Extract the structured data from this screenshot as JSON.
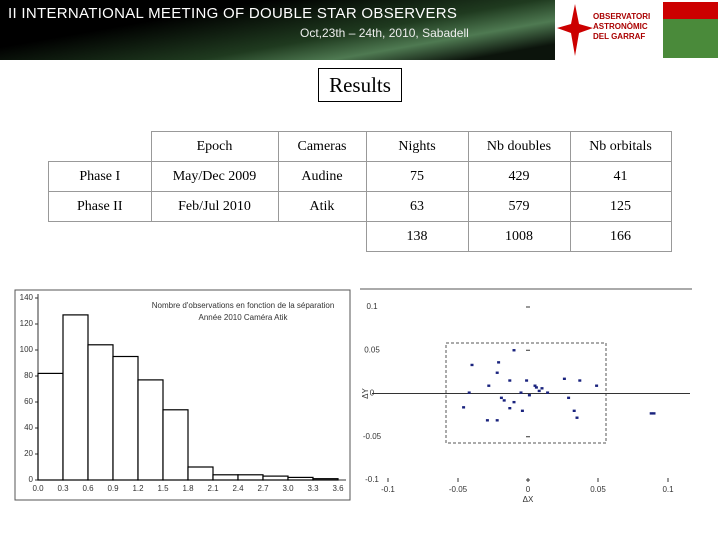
{
  "header": {
    "title": "II INTERNATIONAL MEETING OF DOUBLE STAR OBSERVERS",
    "subtitle": "Oct,23th – 24th, 2010, Sabadell",
    "logo_text": [
      "OBSERVATORI",
      "ASTRONÒMIC",
      "DEL GARRAF"
    ]
  },
  "heading": "Results",
  "table": {
    "headers": [
      "Epoch",
      "Cameras",
      "Nights",
      "Nb doubles",
      "Nb orbitals"
    ],
    "rows": [
      [
        "Phase I",
        "May/Dec 2009",
        "Audine",
        75,
        429,
        41
      ],
      [
        "Phase II",
        "Feb/Jul 2010",
        "Atik",
        63,
        579,
        125
      ]
    ],
    "totals": [
      138,
      1008,
      166
    ]
  },
  "chart_data": [
    {
      "type": "histogram",
      "title": "Nombre d'observations en fonction de la séparation",
      "subtitle": "Année 2010 Caméra Atik",
      "color": "#ffffff",
      "bins": [
        {
          "value": 0,
          "label": "0.0"
        },
        0.3,
        0.6,
        0.9,
        1.2,
        1.5,
        1.8,
        2.1,
        2.4,
        2.7,
        {
          "value": 3,
          "label": "3.0"
        },
        3.3,
        3.6
      ],
      "values": [
        82,
        127,
        104,
        95,
        77,
        54,
        10,
        4,
        4,
        3,
        2,
        1
      ],
      "xlim": [
        0,
        3.6
      ],
      "ylim": [
        0,
        140
      ],
      "yticks": [
        0,
        20,
        40,
        60,
        80,
        100,
        120,
        140
      ]
    },
    {
      "type": "scatter",
      "xlabel": "ΔX",
      "ylabel": "ΔY",
      "color": "#1a237e",
      "x": [
        -0.01,
        -0.021,
        -0.04,
        -0.022,
        -0.013,
        -0.028,
        -0.001,
        0.005,
        0.008,
        0.01,
        -0.005,
        0.001,
        0.014,
        0.026,
        0.037,
        0.049,
        0.029,
        0.033,
        0.035,
        -0.019,
        -0.01,
        -0.004,
        -0.013,
        -0.022,
        -0.029,
        -0.046,
        -0.042,
        0.088,
        0.09,
        0.006,
        -0.017
      ],
      "values": [
        0.05,
        0.036,
        0.033,
        0.024,
        0.015,
        0.009,
        0.015,
        0.009,
        0.003,
        0.006,
        0.001,
        -0.002,
        0.001,
        0.017,
        0.015,
        0.009,
        -0.005,
        -0.02,
        -0.028,
        -0.005,
        -0.01,
        -0.02,
        -0.017,
        -0.031,
        -0.031,
        -0.016,
        0.001,
        -0.023,
        -0.023,
        0.007,
        -0.008
      ],
      "xlim": [
        -0.1,
        0.1
      ],
      "ylim": [
        -0.1,
        0.1
      ],
      "xticks": [
        -0.1,
        -0.05,
        0,
        0.05,
        0.1
      ],
      "yticks": [
        -0.1,
        -0.05,
        0,
        0.05,
        0.1
      ]
    }
  ]
}
